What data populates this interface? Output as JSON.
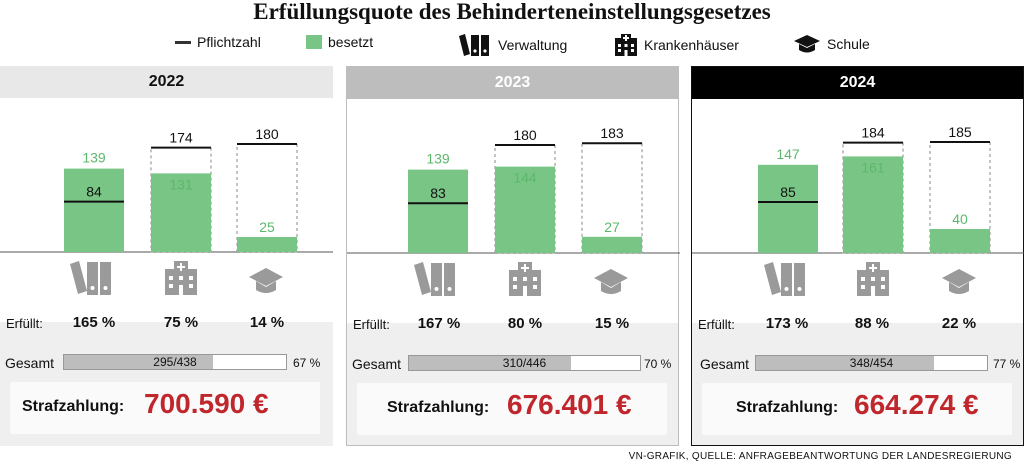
{
  "title": "Erfüllungsquote des Behinderteneinstellungsgesetzes",
  "legend": {
    "pflichtzahl": "Pflichtzahl",
    "besetzt": "besetzt",
    "verwaltung": "Verwaltung",
    "krankenhaeuser": "Krankenhäuser",
    "schule": "Schule"
  },
  "colors": {
    "besetzt": "#79c585",
    "besetzt_label": "#5cb86b",
    "pflicht": "#111111",
    "penalty": "#c0272d"
  },
  "erfuellt_label": "Erfüllt:",
  "gesamt_label": "Gesamt",
  "strafzahlung_label": "Strafzahlung:",
  "source": "VN-GRAFIK, QUELLE: ANFRAGEBEANTWORTUNG DER LANDESREGIERUNG",
  "chart_data": [
    {
      "type": "bar",
      "title": "2022",
      "categories": [
        "Verwaltung",
        "Krankenhäuser",
        "Schule"
      ],
      "series": [
        {
          "name": "besetzt",
          "values": [
            139,
            131,
            25
          ]
        },
        {
          "name": "Pflichtzahl",
          "values": [
            84,
            174,
            180
          ]
        }
      ],
      "erfuellt": [
        "165 %",
        "75 %",
        "14 %"
      ],
      "gesamt": {
        "label": "295/438",
        "fraction": 0.67,
        "pct": "67 %"
      },
      "strafzahlung": "700.590 €"
    },
    {
      "type": "bar",
      "title": "2023",
      "categories": [
        "Verwaltung",
        "Krankenhäuser",
        "Schule"
      ],
      "series": [
        {
          "name": "besetzt",
          "values": [
            139,
            144,
            27
          ]
        },
        {
          "name": "Pflichtzahl",
          "values": [
            83,
            180,
            183
          ]
        }
      ],
      "erfuellt": [
        "167 %",
        "80 %",
        "15 %"
      ],
      "gesamt": {
        "label": "310/446",
        "fraction": 0.7,
        "pct": "70 %"
      },
      "strafzahlung": "676.401 €"
    },
    {
      "type": "bar",
      "title": "2024",
      "categories": [
        "Verwaltung",
        "Krankenhäuser",
        "Schule"
      ],
      "series": [
        {
          "name": "besetzt",
          "values": [
            147,
            161,
            40
          ]
        },
        {
          "name": "Pflichtzahl",
          "values": [
            85,
            184,
            185
          ]
        }
      ],
      "erfuellt": [
        "173 %",
        "88 %",
        "22 %"
      ],
      "gesamt": {
        "label": "348/454",
        "fraction": 0.77,
        "pct": "77 %"
      },
      "strafzahlung": "664.274 €"
    }
  ]
}
